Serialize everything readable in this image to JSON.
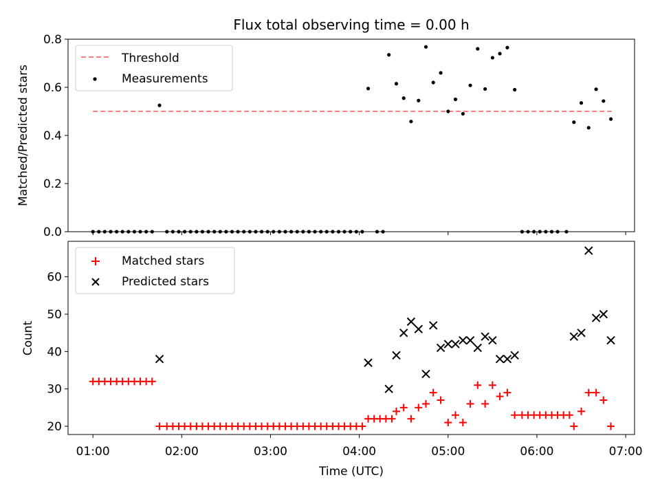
{
  "title": "Flux total observing time = 0.00 h",
  "xlabel": "Time (UTC)",
  "x_ticks": [
    "01:00",
    "02:00",
    "03:00",
    "04:00",
    "05:00",
    "06:00",
    "07:00"
  ],
  "colors": {
    "threshold": "#ff7f7f",
    "measurement": "#000000",
    "matched": "#ff0000",
    "predicted": "#000000"
  },
  "chart_data": [
    {
      "type": "scatter",
      "title": "Flux total observing time = 0.00 h",
      "xlabel": "",
      "ylabel": "Matched/Predicted stars",
      "xlim": [
        0.72,
        7.1
      ],
      "ylim": [
        0,
        0.8
      ],
      "y_ticks": [
        "0.0",
        "0.2",
        "0.4",
        "0.6",
        "0.8"
      ],
      "grid": false,
      "legend": "top-left",
      "threshold": {
        "name": "Threshold",
        "value": 0.5,
        "x_range": [
          1.0,
          6.84
        ]
      },
      "series": [
        {
          "name": "Measurements",
          "x": [
            1.0,
            1.067,
            1.133,
            1.2,
            1.267,
            1.333,
            1.4,
            1.467,
            1.533,
            1.6,
            1.667,
            1.75,
            1.833,
            1.9,
            1.967,
            2.033,
            2.1,
            2.167,
            2.233,
            2.3,
            2.367,
            2.433,
            2.5,
            2.567,
            2.633,
            2.7,
            2.767,
            2.833,
            2.9,
            2.967,
            3.033,
            3.1,
            3.167,
            3.233,
            3.3,
            3.367,
            3.433,
            3.5,
            3.567,
            3.633,
            3.7,
            3.767,
            3.833,
            3.9,
            3.967,
            4.033,
            4.1,
            4.2,
            4.267,
            4.333,
            4.417,
            4.5,
            4.583,
            4.667,
            4.75,
            4.833,
            4.917,
            5.0,
            5.083,
            5.167,
            5.25,
            5.333,
            5.417,
            5.5,
            5.583,
            5.667,
            5.75,
            5.833,
            5.9,
            5.967,
            6.033,
            6.1,
            6.167,
            6.233,
            6.333,
            6.417,
            6.5,
            6.583,
            6.667,
            6.75,
            6.833
          ],
          "values": [
            0,
            0,
            0,
            0,
            0,
            0,
            0,
            0,
            0,
            0,
            0,
            0.525,
            0,
            0,
            0,
            0,
            0,
            0,
            0,
            0,
            0,
            0,
            0,
            0,
            0,
            0,
            0,
            0,
            0,
            0,
            0,
            0,
            0,
            0,
            0,
            0,
            0,
            0,
            0,
            0,
            0,
            0,
            0,
            0,
            0,
            0,
            0.595,
            0,
            0,
            0.735,
            0.615,
            0.555,
            0.458,
            0.545,
            0.768,
            0.62,
            0.66,
            0.5,
            0.55,
            0.49,
            0.608,
            0.76,
            0.593,
            0.723,
            0.74,
            0.765,
            0.59,
            0,
            0,
            0,
            0,
            0,
            0,
            0,
            0,
            0.455,
            0.535,
            0.432,
            0.592,
            0.543,
            0.468
          ]
        }
      ]
    },
    {
      "type": "scatter",
      "xlabel": "Time (UTC)",
      "ylabel": "Count",
      "xlim": [
        0.72,
        7.1
      ],
      "ylim": [
        17.8,
        69.5
      ],
      "y_ticks": [
        "20",
        "30",
        "40",
        "50",
        "60"
      ],
      "grid": false,
      "legend": "top-left",
      "series": [
        {
          "name": "Matched stars",
          "marker": "+",
          "x": [
            1.0,
            1.067,
            1.133,
            1.2,
            1.267,
            1.333,
            1.4,
            1.467,
            1.533,
            1.6,
            1.667,
            1.75,
            1.833,
            1.9,
            1.967,
            2.033,
            2.1,
            2.167,
            2.233,
            2.3,
            2.367,
            2.433,
            2.5,
            2.567,
            2.633,
            2.7,
            2.767,
            2.833,
            2.9,
            2.967,
            3.033,
            3.1,
            3.167,
            3.233,
            3.3,
            3.367,
            3.433,
            3.5,
            3.567,
            3.633,
            3.7,
            3.767,
            3.833,
            3.9,
            3.967,
            4.033,
            4.1,
            4.167,
            4.233,
            4.3,
            4.367,
            4.417,
            4.5,
            4.583,
            4.667,
            4.75,
            4.833,
            4.917,
            5.0,
            5.083,
            5.167,
            5.25,
            5.333,
            5.417,
            5.5,
            5.583,
            5.667,
            5.75,
            5.833,
            5.9,
            5.967,
            6.033,
            6.1,
            6.167,
            6.233,
            6.3,
            6.367,
            6.417,
            6.5,
            6.583,
            6.667,
            6.75,
            6.833
          ],
          "values": [
            32,
            32,
            32,
            32,
            32,
            32,
            32,
            32,
            32,
            32,
            32,
            20,
            20,
            20,
            20,
            20,
            20,
            20,
            20,
            20,
            20,
            20,
            20,
            20,
            20,
            20,
            20,
            20,
            20,
            20,
            20,
            20,
            20,
            20,
            20,
            20,
            20,
            20,
            20,
            20,
            20,
            20,
            20,
            20,
            20,
            20,
            22,
            22,
            22,
            22,
            22,
            24,
            25,
            22,
            25,
            26,
            29,
            27,
            21,
            23,
            21,
            26,
            31,
            26,
            31,
            28,
            29,
            23,
            23,
            23,
            23,
            23,
            23,
            23,
            23,
            23,
            23,
            20,
            24,
            29,
            29,
            27,
            20
          ]
        },
        {
          "name": "Predicted stars",
          "marker": "x",
          "x": [
            1.75,
            4.1,
            4.333,
            4.417,
            4.5,
            4.583,
            4.667,
            4.75,
            4.833,
            4.917,
            5.0,
            5.083,
            5.167,
            5.25,
            5.333,
            5.417,
            5.5,
            5.583,
            5.667,
            5.75,
            6.417,
            6.5,
            6.583,
            6.667,
            6.75,
            6.833
          ],
          "values": [
            38,
            37,
            30,
            39,
            45,
            48,
            46,
            34,
            47,
            41,
            42,
            42,
            43,
            43,
            41,
            44,
            43,
            38,
            38,
            39,
            44,
            45,
            67,
            49,
            50,
            43
          ]
        }
      ]
    }
  ]
}
